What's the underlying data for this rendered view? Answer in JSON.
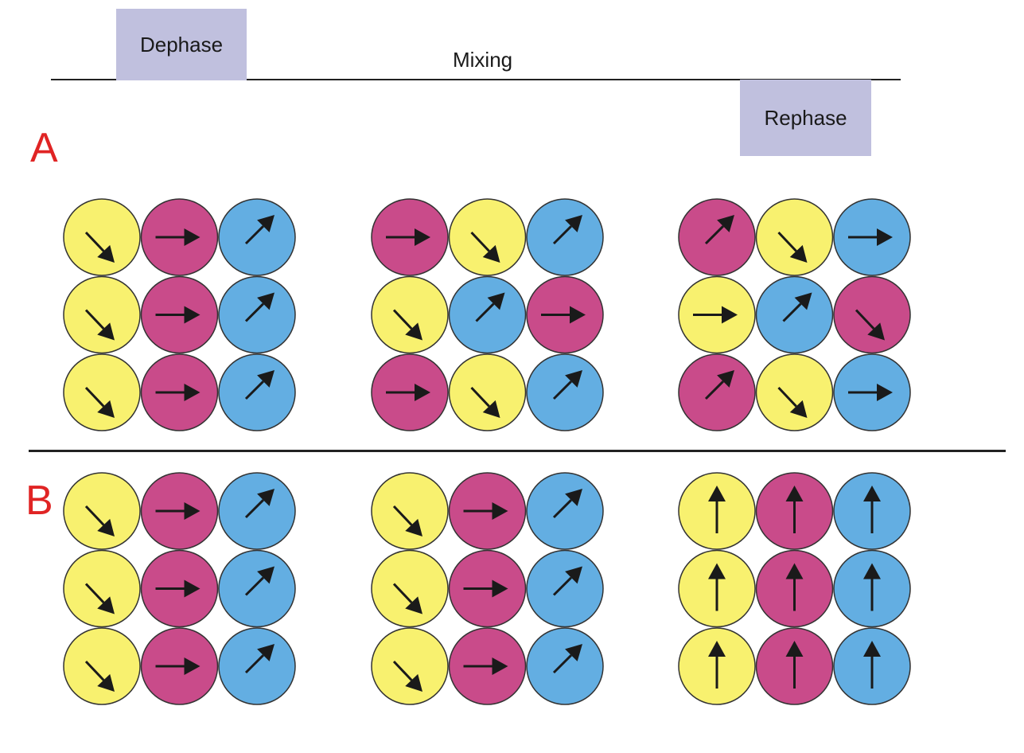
{
  "sequence": {
    "dephase_label": "Dephase",
    "mixing_label": "Mixing",
    "rephase_label": "Rephase"
  },
  "colors": {
    "Y": "#f8f16f",
    "M": "#c94b8a",
    "B": "#63aee2",
    "arrow": "#1a1a1a",
    "outline": "#333333",
    "section_label": "#e02424",
    "pulse_box": "#c0c0de"
  },
  "arrow_directions": {
    "down-right": "arrow pointing down-right",
    "right": "arrow pointing right",
    "up-right": "arrow pointing up-right",
    "up": "arrow pointing up"
  },
  "panels": [
    {
      "label": "A",
      "grids": [
        [
          [
            "Y:down-right",
            "M:right",
            "B:up-right"
          ],
          [
            "Y:down-right",
            "M:right",
            "B:up-right"
          ],
          [
            "Y:down-right",
            "M:right",
            "B:up-right"
          ]
        ],
        [
          [
            "M:right",
            "Y:down-right",
            "B:up-right"
          ],
          [
            "Y:down-right",
            "B:up-right",
            "M:right"
          ],
          [
            "M:right",
            "Y:down-right",
            "B:up-right"
          ]
        ],
        [
          [
            "M:up-right",
            "Y:down-right",
            "B:right"
          ],
          [
            "Y:right",
            "B:up-right",
            "M:down-right"
          ],
          [
            "M:up-right",
            "Y:down-right",
            "B:right"
          ]
        ]
      ]
    },
    {
      "label": "B",
      "grids": [
        [
          [
            "Y:down-right",
            "M:right",
            "B:up-right"
          ],
          [
            "Y:down-right",
            "M:right",
            "B:up-right"
          ],
          [
            "Y:down-right",
            "M:right",
            "B:up-right"
          ]
        ],
        [
          [
            "Y:down-right",
            "M:right",
            "B:up-right"
          ],
          [
            "Y:down-right",
            "M:right",
            "B:up-right"
          ],
          [
            "Y:down-right",
            "M:right",
            "B:up-right"
          ]
        ],
        [
          [
            "Y:up",
            "M:up",
            "B:up"
          ],
          [
            "Y:up",
            "M:up",
            "B:up"
          ],
          [
            "Y:up",
            "M:up",
            "B:up"
          ]
        ]
      ]
    }
  ]
}
